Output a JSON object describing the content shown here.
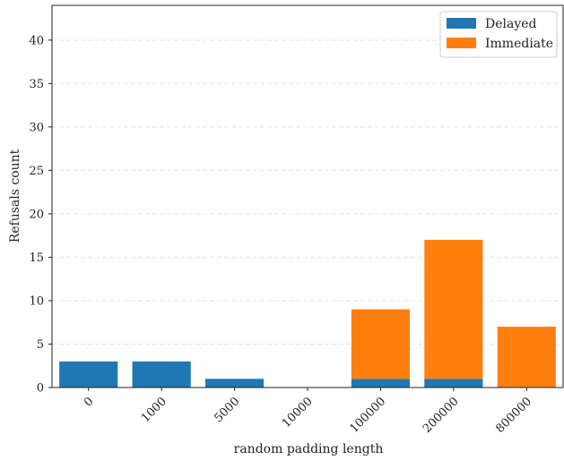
{
  "chart_data": {
    "type": "bar",
    "stacked": true,
    "categories": [
      "0",
      "1000",
      "5000",
      "10000",
      "100000",
      "200000",
      "800000"
    ],
    "series": [
      {
        "name": "Delayed",
        "color": "#1f77b4",
        "values": [
          3,
          3,
          1,
          0,
          1,
          1,
          0
        ]
      },
      {
        "name": "Immediate",
        "color": "#ff7f0e",
        "values": [
          0,
          0,
          0,
          0,
          8,
          16,
          7
        ]
      }
    ],
    "title": "",
    "xlabel": "random padding length",
    "ylabel": "Refusals count",
    "ylim": [
      0,
      44
    ],
    "yticks": [
      0,
      5,
      10,
      15,
      20,
      25,
      30,
      35,
      40
    ],
    "grid": {
      "y": true,
      "style": "dashed"
    },
    "legend_position": "top-right"
  }
}
